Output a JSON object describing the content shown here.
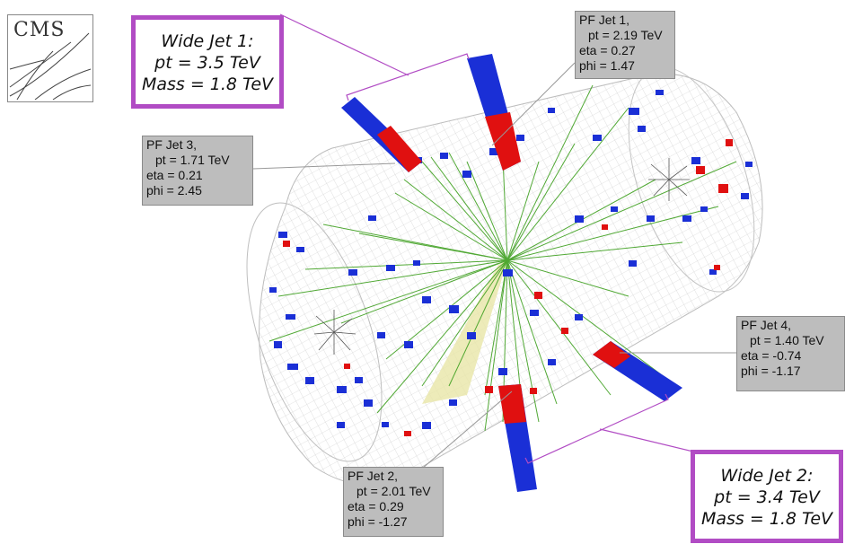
{
  "logo": {
    "text": "CMS"
  },
  "wide_jets": [
    {
      "title": "Wide Jet 1:",
      "pt": "pt = 3.5 TeV",
      "mass": "Mass = 1.8 TeV"
    },
    {
      "title": "Wide Jet 2:",
      "pt": "pt = 3.4 TeV",
      "mass": "Mass = 1.8 TeV"
    }
  ],
  "pf_jets": [
    {
      "name": "PF Jet 1,",
      "pt": "pt = 2.19 TeV",
      "eta": "eta = 0.27",
      "phi": "phi = 1.47"
    },
    {
      "name": "PF Jet 2,",
      "pt": "pt = 2.01 TeV",
      "eta": "eta = 0.29",
      "phi": "phi = -1.27"
    },
    {
      "name": "PF Jet 3,",
      "pt": "pt = 1.71 TeV",
      "eta": "eta = 0.21",
      "phi": "phi = 2.45"
    },
    {
      "name": "PF Jet 4,",
      "pt": "pt = 1.40 TeV",
      "eta": "eta = -0.74",
      "phi": "phi = -1.17"
    }
  ],
  "colors": {
    "frame_purple": "#b14cc4",
    "ecal_red": "#e01010",
    "hcal_blue": "#1a2fd6",
    "track_green": "#3fa020",
    "label_gray": "#bdbdbd"
  }
}
